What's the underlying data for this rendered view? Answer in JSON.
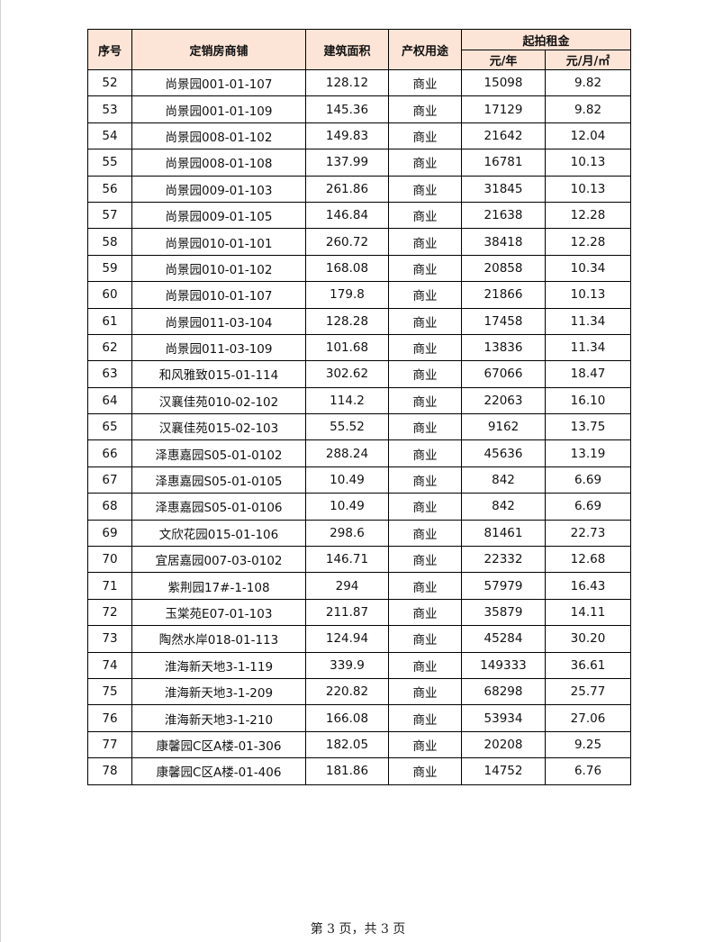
{
  "table": {
    "headers": {
      "no": "序号",
      "shop": "定销房商铺",
      "area": "建筑面积",
      "use": "产权用途",
      "rent": "起拍租金",
      "rent_year": "元/年",
      "rent_month": "元/月/㎡"
    },
    "rows": [
      [
        "52",
        "尚景园001-01-107",
        "128.12",
        "商业",
        "15098",
        "9.82"
      ],
      [
        "53",
        "尚景园001-01-109",
        "145.36",
        "商业",
        "17129",
        "9.82"
      ],
      [
        "54",
        "尚景园008-01-102",
        "149.83",
        "商业",
        "21642",
        "12.04"
      ],
      [
        "55",
        "尚景园008-01-108",
        "137.99",
        "商业",
        "16781",
        "10.13"
      ],
      [
        "56",
        "尚景园009-01-103",
        "261.86",
        "商业",
        "31845",
        "10.13"
      ],
      [
        "57",
        "尚景园009-01-105",
        "146.84",
        "商业",
        "21638",
        "12.28"
      ],
      [
        "58",
        "尚景园010-01-101",
        "260.72",
        "商业",
        "38418",
        "12.28"
      ],
      [
        "59",
        "尚景园010-01-102",
        "168.08",
        "商业",
        "20858",
        "10.34"
      ],
      [
        "60",
        "尚景园010-01-107",
        "179.8",
        "商业",
        "21866",
        "10.13"
      ],
      [
        "61",
        "尚景园011-03-104",
        "128.28",
        "商业",
        "17458",
        "11.34"
      ],
      [
        "62",
        "尚景园011-03-109",
        "101.68",
        "商业",
        "13836",
        "11.34"
      ],
      [
        "63",
        "和风雅致015-01-114",
        "302.62",
        "商业",
        "67066",
        "18.47"
      ],
      [
        "64",
        "汉襄佳苑010-02-102",
        "114.2",
        "商业",
        "22063",
        "16.10"
      ],
      [
        "65",
        "汉襄佳苑015-02-103",
        "55.52",
        "商业",
        "9162",
        "13.75"
      ],
      [
        "66",
        "泽惠嘉园S05-01-0102",
        "288.24",
        "商业",
        "45636",
        "13.19"
      ],
      [
        "67",
        "泽惠嘉园S05-01-0105",
        "10.49",
        "商业",
        "842",
        "6.69"
      ],
      [
        "68",
        "泽惠嘉园S05-01-0106",
        "10.49",
        "商业",
        "842",
        "6.69"
      ],
      [
        "69",
        "文欣花园015-01-106",
        "298.6",
        "商业",
        "81461",
        "22.73"
      ],
      [
        "70",
        "宜居嘉园007-03-0102",
        "146.71",
        "商业",
        "22332",
        "12.68"
      ],
      [
        "71",
        "紫荆园17#-1-108",
        "294",
        "商业",
        "57979",
        "16.43"
      ],
      [
        "72",
        "玉棠苑E07-01-103",
        "211.87",
        "商业",
        "35879",
        "14.11"
      ],
      [
        "73",
        "陶然水岸018-01-113",
        "124.94",
        "商业",
        "45284",
        "30.20"
      ],
      [
        "74",
        "淮海新天地3-1-119",
        "339.9",
        "商业",
        "149333",
        "36.61"
      ],
      [
        "75",
        "淮海新天地3-1-209",
        "220.82",
        "商业",
        "68298",
        "25.77"
      ],
      [
        "76",
        "淮海新天地3-1-210",
        "166.08",
        "商业",
        "53934",
        "27.06"
      ],
      [
        "77",
        "康馨园C区A楼-01-306",
        "182.05",
        "商业",
        "20208",
        "9.25"
      ],
      [
        "78",
        "康馨园C区A楼-01-406",
        "181.86",
        "商业",
        "14752",
        "6.76"
      ]
    ]
  },
  "footer": {
    "page_label": "第 3 页，共 3 页"
  },
  "colors": {
    "header_bg": "#fce4d6",
    "border": "#000000"
  }
}
